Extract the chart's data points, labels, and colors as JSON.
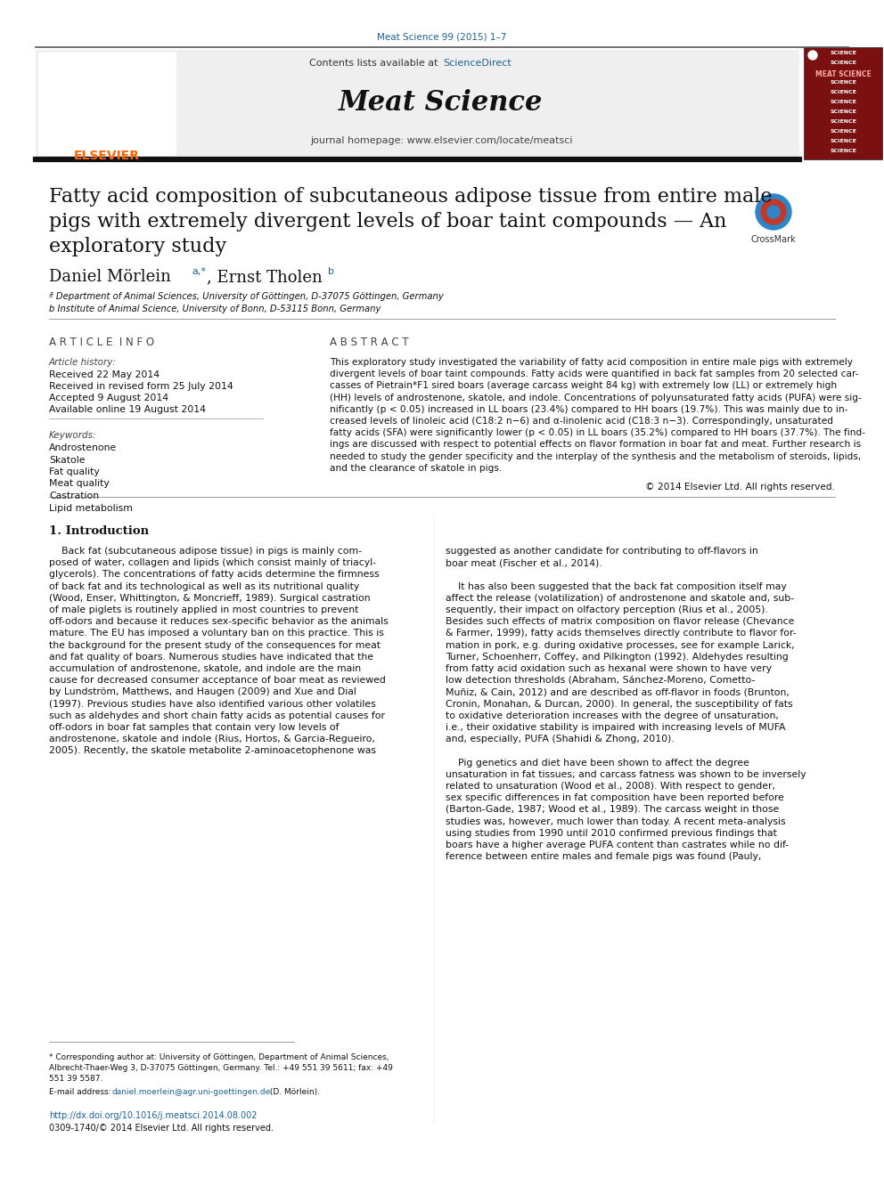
{
  "page_width": 9.92,
  "page_height": 13.23,
  "background_color": "#ffffff",
  "journal_ref": "Meat Science 99 (2015) 1–7",
  "journal_ref_color": "#1a6496",
  "header_bg": "#f0f0f0",
  "header_text": "Meat Science",
  "contents_text": "Contents lists available at ScienceDirect",
  "sciencedirect_color": "#1a6496",
  "journal_homepage": "journal homepage: www.elsevier.com/locate/meatsci",
  "elsevier_color": "#FF6600",
  "title": "Fatty acid composition of subcutaneous adipose tissue from entire male\npigs with extremely divergent levels of boar taint compounds — An\nexploratory study",
  "authors": "Daniel Mörlein",
  "author_superscript": "a,*",
  "author2_superscript": "b",
  "affil_a": "ª Department of Animal Sciences, University of Göttingen, D-37075 Göttingen, Germany",
  "affil_b": "b Institute of Animal Science, University of Bonn, D-53115 Bonn, Germany",
  "section_article_info": "A R T I C L E  I N F O",
  "section_abstract": "A B S T R A C T",
  "article_history_label": "Article history:",
  "received": "Received 22 May 2014",
  "received_revised": "Received in revised form 25 July 2014",
  "accepted": "Accepted 9 August 2014",
  "available": "Available online 19 August 2014",
  "keywords_label": "Keywords:",
  "keywords": [
    "Androstenone",
    "Skatole",
    "Fat quality",
    "Meat quality",
    "Castration",
    "Lipid metabolism"
  ],
  "copyright": "© 2014 Elsevier Ltd. All rights reserved.",
  "intro_heading": "1. Introduction",
  "footnote_corresponding": "* Corresponding author at: University of Göttingen, Department of Animal Sciences, Albrecht-Thaer-Weg 3, D-37075 Göttingen, Germany. Tel.: +49 551 39 5611; fax: +49 551 39 5587.",
  "footnote_email_label": "E-mail address:",
  "footnote_email": "daniel.moerlein@agr.uni-goettingen.de",
  "footnote_email_suffix": " (D. Mörlein).",
  "doi_text": "http://dx.doi.org/10.1016/j.meatsci.2014.08.002",
  "issn_text": "0309-1740/© 2014 Elsevier Ltd. All rights reserved.",
  "link_color": "#1a6496",
  "cover_lines": [
    "SCIENCE",
    "SCIENCE",
    "MEAT SCIENCE",
    "SCIENCE",
    "SCIENCE",
    "SCIENCE",
    "SCIENCE",
    "SCIENCE",
    "SCIENCE",
    "SCIENCE",
    "SCIENCE"
  ],
  "abstract_lines": [
    "This exploratory study investigated the variability of fatty acid composition in entire male pigs with extremely",
    "divergent levels of boar taint compounds. Fatty acids were quantified in back fat samples from 20 selected car-",
    "casses of Pietrain*F1 sired boars (average carcass weight 84 kg) with extremely low (LL) or extremely high",
    "(HH) levels of androstenone, skatole, and indole. Concentrations of polyunsaturated fatty acids (PUFA) were sig-",
    "nificantly (p < 0.05) increased in LL boars (23.4%) compared to HH boars (19.7%). This was mainly due to in-",
    "creased levels of linoleic acid (C18:2 n−6) and α-linolenic acid (C18:3 n−3). Correspondingly, unsaturated",
    "fatty acids (SFA) were significantly lower (p < 0.05) in LL boars (35.2%) compared to HH boars (37.7%). The find-",
    "ings are discussed with respect to potential effects on flavor formation in boar fat and meat. Further research is",
    "needed to study the gender specificity and the interplay of the synthesis and the metabolism of steroids, lipids,",
    "and the clearance of skatole in pigs."
  ],
  "intro_col1_lines": [
    "    Back fat (subcutaneous adipose tissue) in pigs is mainly com-",
    "posed of water, collagen and lipids (which consist mainly of triacyl-",
    "glycerols). The concentrations of fatty acids determine the firmness",
    "of back fat and its technological as well as its nutritional quality",
    "(Wood, Enser, Whittington, & Moncrieff, 1989). Surgical castration",
    "of male piglets is routinely applied in most countries to prevent",
    "off-odors and because it reduces sex-specific behavior as the animals",
    "mature. The EU has imposed a voluntary ban on this practice. This is",
    "the background for the present study of the consequences for meat",
    "and fat quality of boars. Numerous studies have indicated that the",
    "accumulation of androstenone, skatole, and indole are the main",
    "cause for decreased consumer acceptance of boar meat as reviewed",
    "by Lundström, Matthews, and Haugen (2009) and Xue and Dial",
    "(1997). Previous studies have also identified various other volatiles",
    "such as aldehydes and short chain fatty acids as potential causes for",
    "off-odors in boar fat samples that contain very low levels of",
    "androstenone, skatole and indole (Rius, Hortos, & Garcia-Regueiro,",
    "2005). Recently, the skatole metabolite 2-aminoacetophenone was"
  ],
  "intro_col2_lines": [
    "suggested as another candidate for contributing to off-flavors in",
    "boar meat (Fischer et al., 2014).",
    "",
    "    It has also been suggested that the back fat composition itself may",
    "affect the release (volatilization) of androstenone and skatole and, sub-",
    "sequently, their impact on olfactory perception (Rius et al., 2005).",
    "Besides such effects of matrix composition on flavor release (Chevance",
    "& Farmer, 1999), fatty acids themselves directly contribute to flavor for-",
    "mation in pork, e.g. during oxidative processes, see for example Larick,",
    "Turner, Schoenherr, Coffey, and Pilkington (1992). Aldehydes resulting",
    "from fatty acid oxidation such as hexanal were shown to have very",
    "low detection thresholds (Abraham, Sánchez-Moreno, Cometto-",
    "Muñiz, & Cain, 2012) and are described as off-flavor in foods (Brunton,",
    "Cronin, Monahan, & Durcan, 2000). In general, the susceptibility of fats",
    "to oxidative deterioration increases with the degree of unsaturation,",
    "i.e., their oxidative stability is impaired with increasing levels of MUFA",
    "and, especially, PUFA (Shahidi & Zhong, 2010).",
    "",
    "    Pig genetics and diet have been shown to affect the degree",
    "unsaturation in fat tissues; and carcass fatness was shown to be inversely",
    "related to unsaturation (Wood et al., 2008). With respect to gender,",
    "sex specific differences in fat composition have been reported before",
    "(Barton-Gade, 1987; Wood et al., 1989). The carcass weight in those",
    "studies was, however, much lower than today. A recent meta-analysis",
    "using studies from 1990 until 2010 confirmed previous findings that",
    "boars have a higher average PUFA content than castrates while no dif-",
    "ference between entire males and female pigs was found (Pauly,"
  ]
}
